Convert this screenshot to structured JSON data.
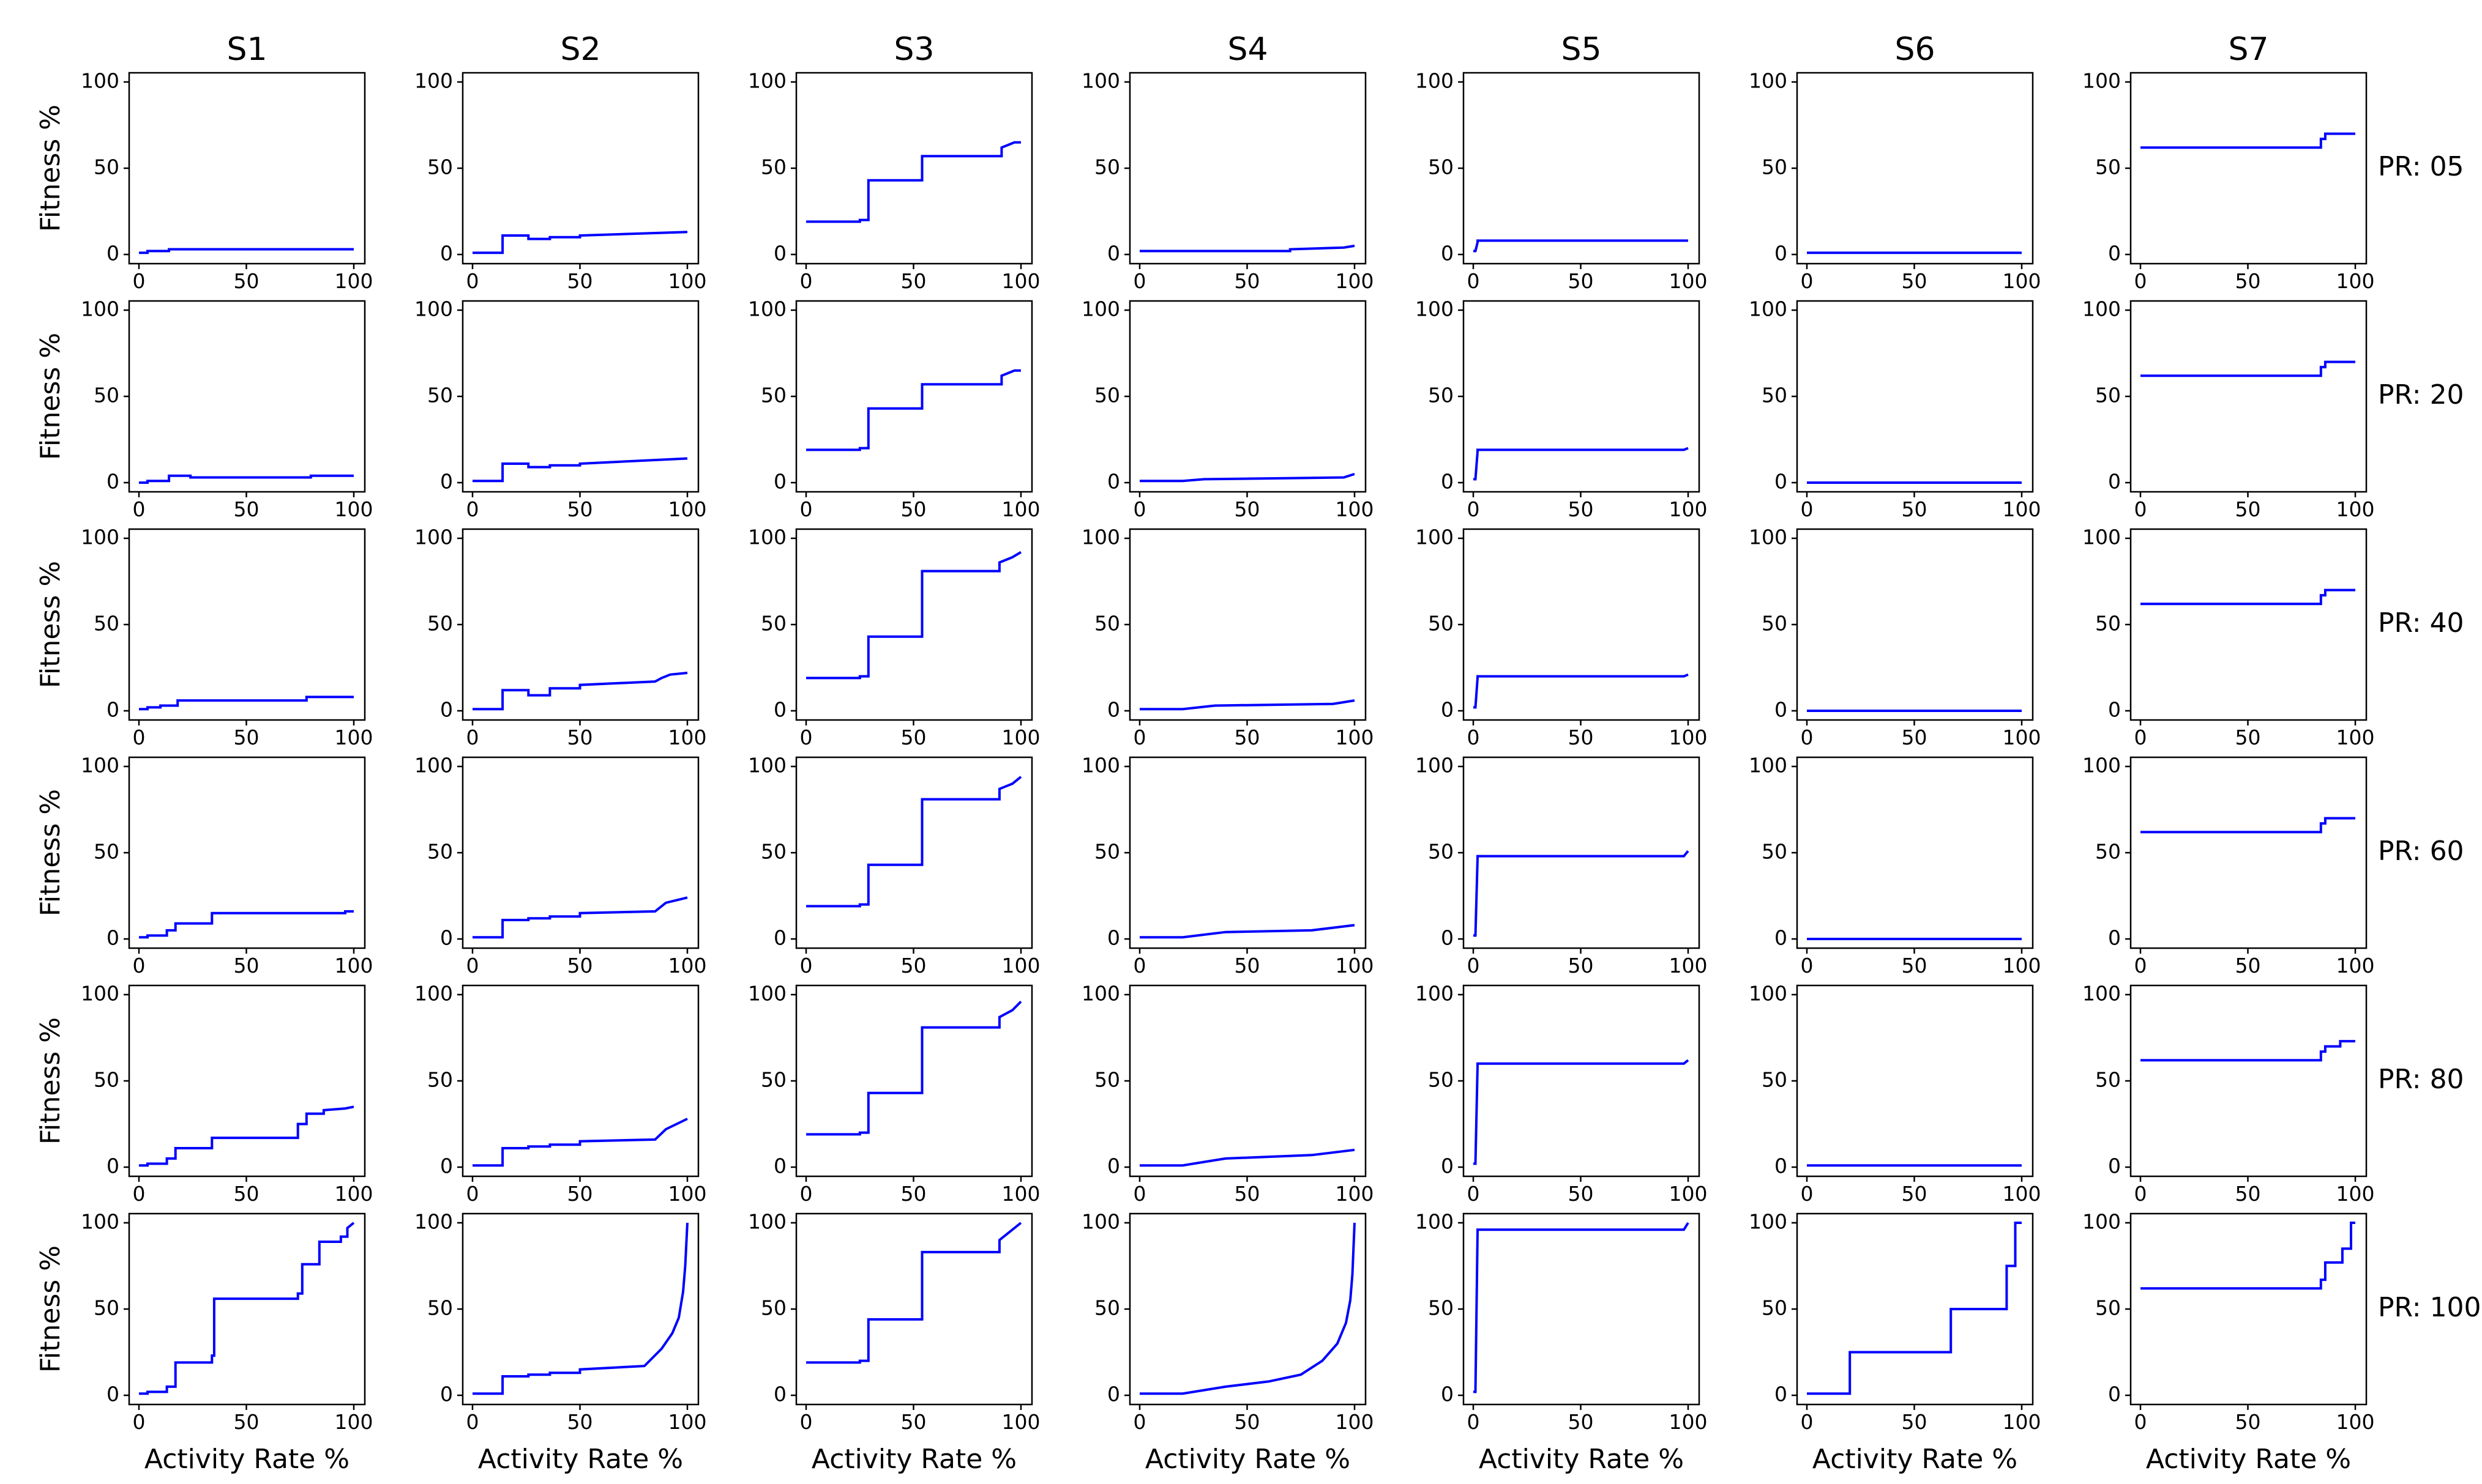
{
  "figure": {
    "xlabel": "Activity Rate %",
    "ylabel": "Fitness %",
    "line_color": "#0000ff",
    "columns": [
      "S1",
      "S2",
      "S3",
      "S4",
      "S5",
      "S6",
      "S7"
    ],
    "rows": [
      "PR: 05",
      "PR: 20",
      "PR: 40",
      "PR: 60",
      "PR: 80",
      "PR: 100"
    ]
  },
  "chart_data": {
    "type": "line",
    "layout": "grid of 6 rows x 7 columns",
    "xlim": [
      0,
      100
    ],
    "ylim": [
      0,
      100
    ],
    "xticks": [
      0,
      50,
      100
    ],
    "yticks": [
      0,
      50,
      100
    ],
    "xlabel": "Activity Rate %",
    "ylabel": "Fitness %",
    "panels": [
      [
        {
          "column": "S1",
          "row": "PR: 05",
          "x": [
            0,
            4,
            4,
            14,
            14,
            100
          ],
          "y": [
            1,
            1,
            2,
            2,
            3,
            3
          ]
        },
        {
          "column": "S2",
          "row": "PR: 05",
          "x": [
            0,
            14,
            14,
            26,
            26,
            36,
            36,
            50,
            50,
            100
          ],
          "y": [
            1,
            1,
            11,
            11,
            9,
            9,
            10,
            10,
            11,
            13
          ]
        },
        {
          "column": "S3",
          "row": "PR: 05",
          "x": [
            0,
            25,
            25,
            29,
            29,
            54,
            54,
            91,
            91,
            97,
            100
          ],
          "y": [
            19,
            19,
            20,
            20,
            43,
            43,
            57,
            57,
            62,
            65,
            65
          ]
        },
        {
          "column": "S4",
          "row": "PR: 05",
          "x": [
            0,
            70,
            70,
            95,
            100
          ],
          "y": [
            2,
            2,
            3,
            4,
            5
          ]
        },
        {
          "column": "S5",
          "row": "PR: 05",
          "x": [
            0,
            1,
            2,
            2,
            100
          ],
          "y": [
            2,
            2,
            7,
            8,
            8
          ]
        },
        {
          "column": "S6",
          "row": "PR: 05",
          "x": [
            0,
            100
          ],
          "y": [
            1,
            1
          ]
        },
        {
          "column": "S7",
          "row": "PR: 05",
          "x": [
            0,
            84,
            84,
            86,
            86,
            100
          ],
          "y": [
            62,
            62,
            67,
            67,
            70,
            70
          ]
        }
      ],
      [
        {
          "column": "S1",
          "row": "PR: 20",
          "x": [
            0,
            4,
            4,
            14,
            14,
            24,
            24,
            80,
            80,
            100
          ],
          "y": [
            0,
            0,
            1,
            1,
            4,
            4,
            3,
            3,
            4,
            4
          ]
        },
        {
          "column": "S2",
          "row": "PR: 20",
          "x": [
            0,
            14,
            14,
            26,
            26,
            36,
            36,
            50,
            50,
            100
          ],
          "y": [
            1,
            1,
            11,
            11,
            9,
            9,
            10,
            10,
            11,
            14
          ]
        },
        {
          "column": "S3",
          "row": "PR: 20",
          "x": [
            0,
            25,
            25,
            29,
            29,
            54,
            54,
            91,
            91,
            97,
            100
          ],
          "y": [
            19,
            19,
            20,
            20,
            43,
            43,
            57,
            57,
            62,
            65,
            65
          ]
        },
        {
          "column": "S4",
          "row": "PR: 20",
          "x": [
            0,
            20,
            30,
            95,
            100
          ],
          "y": [
            1,
            1,
            2,
            3,
            5
          ]
        },
        {
          "column": "S5",
          "row": "PR: 20",
          "x": [
            0,
            1,
            2,
            2,
            98,
            100
          ],
          "y": [
            2,
            2,
            18,
            19,
            19,
            20
          ]
        },
        {
          "column": "S6",
          "row": "PR: 20",
          "x": [
            0,
            100
          ],
          "y": [
            0,
            0
          ]
        },
        {
          "column": "S7",
          "row": "PR: 20",
          "x": [
            0,
            84,
            84,
            86,
            86,
            100
          ],
          "y": [
            62,
            62,
            67,
            67,
            70,
            70
          ]
        }
      ],
      [
        {
          "column": "S1",
          "row": "PR: 40",
          "x": [
            0,
            4,
            4,
            10,
            10,
            18,
            18,
            78,
            78,
            100
          ],
          "y": [
            1,
            1,
            2,
            2,
            3,
            3,
            6,
            6,
            8,
            8
          ]
        },
        {
          "column": "S2",
          "row": "PR: 40",
          "x": [
            0,
            14,
            14,
            26,
            26,
            36,
            36,
            50,
            50,
            85,
            88,
            92,
            100
          ],
          "y": [
            1,
            1,
            12,
            12,
            9,
            9,
            13,
            13,
            15,
            17,
            19,
            21,
            22
          ]
        },
        {
          "column": "S3",
          "row": "PR: 40",
          "x": [
            0,
            25,
            25,
            29,
            29,
            54,
            54,
            90,
            90,
            96,
            100
          ],
          "y": [
            19,
            19,
            20,
            20,
            43,
            43,
            81,
            81,
            86,
            89,
            92
          ]
        },
        {
          "column": "S4",
          "row": "PR: 40",
          "x": [
            0,
            20,
            35,
            90,
            100
          ],
          "y": [
            1,
            1,
            3,
            4,
            6
          ]
        },
        {
          "column": "S5",
          "row": "PR: 40",
          "x": [
            0,
            1,
            2,
            2,
            98,
            100
          ],
          "y": [
            2,
            2,
            19,
            20,
            20,
            21
          ]
        },
        {
          "column": "S6",
          "row": "PR: 40",
          "x": [
            0,
            100
          ],
          "y": [
            0,
            0
          ]
        },
        {
          "column": "S7",
          "row": "PR: 40",
          "x": [
            0,
            84,
            84,
            86,
            86,
            100
          ],
          "y": [
            62,
            62,
            67,
            67,
            70,
            70
          ]
        }
      ],
      [
        {
          "column": "S1",
          "row": "PR: 60",
          "x": [
            0,
            4,
            4,
            13,
            13,
            17,
            17,
            34,
            34,
            96,
            96,
            100
          ],
          "y": [
            1,
            1,
            2,
            2,
            5,
            5,
            9,
            9,
            15,
            15,
            16,
            16
          ]
        },
        {
          "column": "S2",
          "row": "PR: 60",
          "x": [
            0,
            14,
            14,
            26,
            26,
            36,
            36,
            50,
            50,
            85,
            90,
            100
          ],
          "y": [
            1,
            1,
            11,
            11,
            12,
            12,
            13,
            13,
            15,
            16,
            21,
            24
          ]
        },
        {
          "column": "S3",
          "row": "PR: 60",
          "x": [
            0,
            25,
            25,
            29,
            29,
            54,
            54,
            90,
            90,
            96,
            100
          ],
          "y": [
            19,
            19,
            20,
            20,
            43,
            43,
            81,
            81,
            87,
            90,
            94
          ]
        },
        {
          "column": "S4",
          "row": "PR: 60",
          "x": [
            0,
            20,
            40,
            80,
            100
          ],
          "y": [
            1,
            1,
            4,
            5,
            8
          ]
        },
        {
          "column": "S5",
          "row": "PR: 60",
          "x": [
            0,
            1,
            2,
            2,
            98,
            100
          ],
          "y": [
            2,
            2,
            47,
            48,
            48,
            51
          ]
        },
        {
          "column": "S6",
          "row": "PR: 60",
          "x": [
            0,
            100
          ],
          "y": [
            0,
            0
          ]
        },
        {
          "column": "S7",
          "row": "PR: 60",
          "x": [
            0,
            84,
            84,
            86,
            86,
            100
          ],
          "y": [
            62,
            62,
            67,
            67,
            70,
            70
          ]
        }
      ],
      [
        {
          "column": "S1",
          "row": "PR: 80",
          "x": [
            0,
            4,
            4,
            13,
            13,
            17,
            17,
            34,
            34,
            74,
            74,
            78,
            78,
            86,
            86,
            96,
            100
          ],
          "y": [
            1,
            1,
            2,
            2,
            5,
            5,
            11,
            11,
            17,
            17,
            25,
            25,
            31,
            31,
            33,
            34,
            35
          ]
        },
        {
          "column": "S2",
          "row": "PR: 80",
          "x": [
            0,
            14,
            14,
            26,
            26,
            36,
            36,
            50,
            50,
            85,
            90,
            95,
            100
          ],
          "y": [
            1,
            1,
            11,
            11,
            12,
            12,
            13,
            13,
            15,
            16,
            22,
            25,
            28
          ]
        },
        {
          "column": "S3",
          "row": "PR: 80",
          "x": [
            0,
            25,
            25,
            29,
            29,
            54,
            54,
            90,
            90,
            96,
            100
          ],
          "y": [
            19,
            19,
            20,
            20,
            43,
            43,
            81,
            81,
            87,
            91,
            96
          ]
        },
        {
          "column": "S4",
          "row": "PR: 80",
          "x": [
            0,
            20,
            30,
            40,
            80,
            100
          ],
          "y": [
            1,
            1,
            3,
            5,
            7,
            10
          ]
        },
        {
          "column": "S5",
          "row": "PR: 80",
          "x": [
            0,
            1,
            2,
            2,
            98,
            100
          ],
          "y": [
            2,
            2,
            59,
            60,
            60,
            62
          ]
        },
        {
          "column": "S6",
          "row": "PR: 80",
          "x": [
            0,
            100
          ],
          "y": [
            1,
            1
          ]
        },
        {
          "column": "S7",
          "row": "PR: 80",
          "x": [
            0,
            84,
            84,
            86,
            86,
            93,
            93,
            100
          ],
          "y": [
            62,
            62,
            67,
            67,
            70,
            70,
            73,
            73
          ]
        }
      ],
      [
        {
          "column": "S1",
          "row": "PR: 100",
          "x": [
            0,
            4,
            4,
            13,
            13,
            17,
            17,
            34,
            34,
            35,
            35,
            74,
            74,
            76,
            76,
            84,
            84,
            94,
            94,
            97,
            97,
            100
          ],
          "y": [
            1,
            1,
            2,
            2,
            5,
            5,
            19,
            19,
            23,
            23,
            56,
            56,
            59,
            59,
            76,
            76,
            89,
            89,
            92,
            92,
            97,
            100
          ]
        },
        {
          "column": "S2",
          "row": "PR: 100",
          "x": [
            0,
            14,
            14,
            26,
            26,
            36,
            36,
            50,
            50,
            80,
            88,
            93,
            96,
            98,
            99,
            100
          ],
          "y": [
            1,
            1,
            11,
            11,
            12,
            12,
            13,
            13,
            15,
            17,
            27,
            36,
            45,
            60,
            75,
            100
          ]
        },
        {
          "column": "S3",
          "row": "PR: 100",
          "x": [
            0,
            25,
            25,
            29,
            29,
            54,
            54,
            90,
            90,
            95,
            100
          ],
          "y": [
            19,
            19,
            20,
            20,
            44,
            44,
            83,
            83,
            90,
            95,
            100
          ]
        },
        {
          "column": "S4",
          "row": "PR: 100",
          "x": [
            0,
            20,
            40,
            60,
            75,
            85,
            92,
            96,
            98,
            99,
            100
          ],
          "y": [
            1,
            1,
            5,
            8,
            12,
            20,
            30,
            42,
            55,
            70,
            100
          ]
        },
        {
          "column": "S5",
          "row": "PR: 100",
          "x": [
            0,
            1,
            2,
            2,
            98,
            100
          ],
          "y": [
            2,
            2,
            95,
            96,
            96,
            100
          ]
        },
        {
          "column": "S6",
          "row": "PR: 100",
          "x": [
            0,
            20,
            20,
            67,
            67,
            93,
            93,
            97,
            97,
            100
          ],
          "y": [
            1,
            1,
            25,
            25,
            50,
            50,
            75,
            75,
            100,
            100
          ]
        },
        {
          "column": "S7",
          "row": "PR: 100",
          "x": [
            0,
            84,
            84,
            86,
            86,
            94,
            94,
            98,
            98,
            100
          ],
          "y": [
            62,
            62,
            67,
            67,
            77,
            77,
            85,
            85,
            100,
            100
          ]
        }
      ]
    ]
  }
}
